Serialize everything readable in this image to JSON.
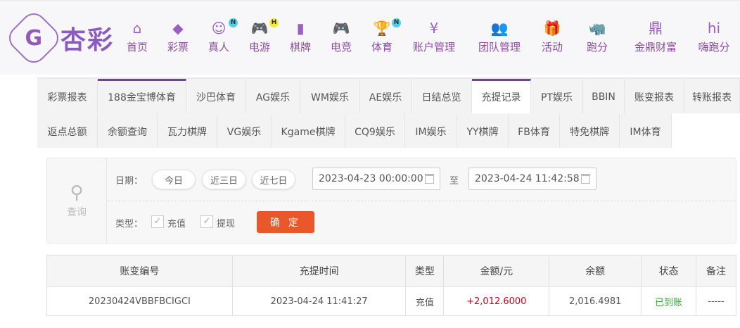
{
  "header": {
    "logo_text": "杏彩",
    "nav": [
      {
        "label": "首页",
        "icon": "home-icon",
        "glyph": "⌂"
      },
      {
        "label": "彩票",
        "icon": "ticket-icon",
        "glyph": "◆"
      },
      {
        "label": "真人",
        "icon": "live-dealer-icon",
        "glyph": "☺",
        "badge": "N",
        "badge_color": "#4fd0e8"
      },
      {
        "label": "电游",
        "icon": "gamepad-icon",
        "glyph": "🎮",
        "badge": "H",
        "badge_color": "#f5ea3a"
      },
      {
        "label": "棋牌",
        "icon": "cards-icon",
        "glyph": "▮"
      },
      {
        "label": "电竞",
        "icon": "esports-gamepad-icon",
        "glyph": "🎮"
      },
      {
        "label": "体育",
        "icon": "trophy-icon",
        "glyph": "🏆",
        "badge": "N",
        "badge_color": "#4fd0e8"
      },
      {
        "label": "账户管理",
        "icon": "yen-coin-icon",
        "glyph": "¥"
      },
      {
        "label": "团队管理",
        "icon": "team-icon",
        "glyph": "👥"
      },
      {
        "label": "活动",
        "icon": "gift-icon",
        "glyph": "🎁"
      },
      {
        "label": "跑分",
        "icon": "rhino-icon",
        "glyph": "🦏"
      },
      {
        "label": "金鼎财富",
        "icon": "cauldron-icon",
        "glyph": "鼎"
      },
      {
        "label": "嗨跑分",
        "icon": "hi-logo-icon",
        "glyph": "hi"
      }
    ]
  },
  "tabs_row1": [
    "彩票报表",
    "188金宝博体育",
    "沙巴体育",
    "AG娱乐",
    "WM娱乐",
    "AE娱乐",
    "日结总览",
    "充提记录",
    "PT娱乐",
    "BBIN",
    "账变报表",
    "转账报表"
  ],
  "tabs_row2": [
    "返点总额",
    "余额查询",
    "瓦力棋牌",
    "VG娱乐",
    "Kgame棋牌",
    "CQ9娱乐",
    "IM娱乐",
    "YY棋牌",
    "FB体育",
    "特免棋牌",
    "IM体育"
  ],
  "active_tab": "充提记录",
  "search": {
    "query_label": "查询",
    "date_label": "日期：",
    "quick": [
      "今日",
      "近三日",
      "近七日"
    ],
    "start": "2023-04-23 00:00:00",
    "to": "至",
    "end": "2023-04-24 11:42:58",
    "type_label": "类型：",
    "types": [
      {
        "label": "充值",
        "checked": true
      },
      {
        "label": "提现",
        "checked": true
      }
    ],
    "confirm": "确 定"
  },
  "table": {
    "headers": [
      "账变编号",
      "充提时间",
      "类型",
      "金额/元",
      "余额",
      "状态",
      "备注"
    ],
    "rows": [
      [
        "20230424VBBFBCIGCI",
        "2023-04-24 11:41:27",
        "充值",
        "+2,012.6000",
        "2,016.4981",
        "已到账",
        "-----"
      ]
    ]
  },
  "colors": {
    "accent": "#6a4a86",
    "confirm": "#e8582a",
    "amount": "#d0021b",
    "status_ok": "#3aa33a"
  }
}
